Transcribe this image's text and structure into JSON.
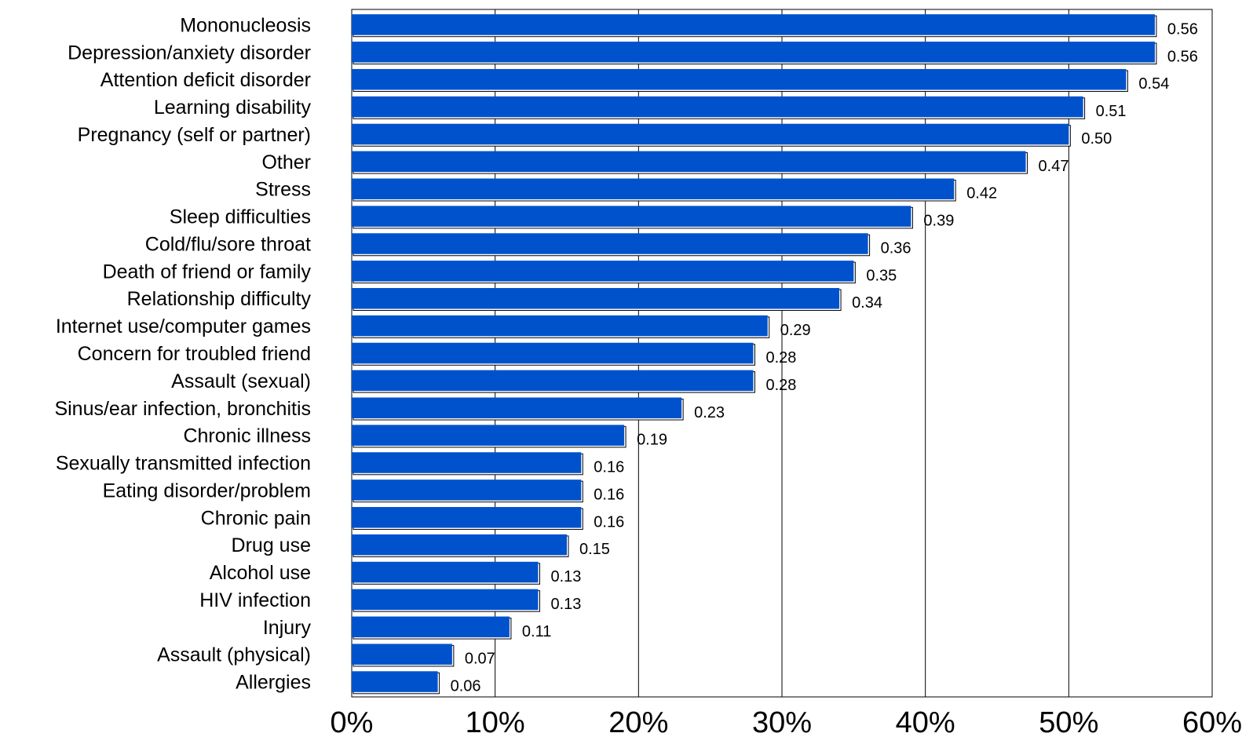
{
  "chart_data": {
    "type": "bar",
    "orientation": "horizontal",
    "categories": [
      "Mononucleosis",
      "Depression/anxiety disorder",
      "Attention deficit disorder",
      "Learning disability",
      "Pregnancy (self or partner)",
      "Other",
      "Stress",
      "Sleep difficulties",
      "Cold/flu/sore throat",
      "Death of friend or family",
      "Relationship difficulty",
      "Internet use/computer games",
      "Concern for troubled friend",
      "Assault (sexual)",
      "Sinus/ear infection, bronchitis",
      "Chronic illness",
      "Sexually transmitted infection",
      "Eating  disorder/problem",
      "Chronic pain",
      "Drug use",
      "Alcohol use",
      "HIV infection",
      "Injury",
      "Assault (physical)",
      "Allergies"
    ],
    "values": [
      0.56,
      0.56,
      0.54,
      0.51,
      0.5,
      0.47,
      0.42,
      0.39,
      0.36,
      0.35,
      0.34,
      0.29,
      0.28,
      0.28,
      0.23,
      0.19,
      0.16,
      0.16,
      0.16,
      0.15,
      0.13,
      0.13,
      0.11,
      0.07,
      0.06
    ],
    "value_labels": [
      "0.56",
      "0.56",
      "0.54",
      "0.51",
      "0.50",
      "0.47",
      "0.42",
      "0.39",
      "0.36",
      "0.35",
      "0.34",
      "0.29",
      "0.28",
      "0.28",
      "0.23",
      "0.19",
      "0.16",
      "0.16",
      "0.16",
      "0.15",
      "0.13",
      "0.13",
      "0.11",
      "0.07",
      "0.06"
    ],
    "x_ticks": [
      "0%",
      "10%",
      "20%",
      "30%",
      "40%",
      "50%",
      "60%"
    ],
    "xlim": [
      0,
      0.6
    ],
    "grid": true,
    "bar_color": "#0052cc",
    "title": "",
    "xlabel": "",
    "ylabel": ""
  }
}
